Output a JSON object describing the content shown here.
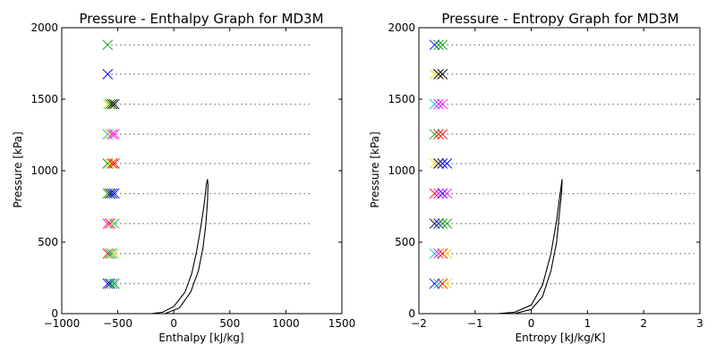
{
  "chart_data": [
    {
      "type": "line",
      "title": "Pressure - Enthalpy Graph for MD3M",
      "xlabel": "Enthalpy [kJ/kg]",
      "ylabel": "Pressure [kPa]",
      "xlim": [
        -1000,
        1500
      ],
      "ylim": [
        0,
        2000
      ],
      "xticks": [
        -1000,
        -500,
        0,
        500,
        1000,
        1500
      ],
      "yticks": [
        0,
        500,
        1000,
        1500,
        2000
      ],
      "xtick_labels": [
        "−1000",
        "−500",
        "0",
        "500",
        "1000",
        "1500"
      ],
      "ytick_labels": [
        "0",
        "500",
        "1000",
        "1500",
        "2000"
      ],
      "grid": false,
      "saturation_dome": {
        "liquid": [
          [
            -200,
            0
          ],
          [
            -100,
            10
          ],
          [
            0,
            50
          ],
          [
            100,
            150
          ],
          [
            160,
            280
          ],
          [
            200,
            420
          ],
          [
            240,
            600
          ],
          [
            270,
            760
          ],
          [
            290,
            900
          ],
          [
            300,
            940
          ]
        ],
        "vapor": [
          [
            -80,
            0
          ],
          [
            50,
            40
          ],
          [
            150,
            150
          ],
          [
            220,
            300
          ],
          [
            260,
            460
          ],
          [
            285,
            620
          ],
          [
            300,
            780
          ],
          [
            305,
            900
          ],
          [
            300,
            940
          ]
        ]
      },
      "isobars": [
        {
          "y": 210,
          "x_end": 1230
        },
        {
          "y": 420,
          "x_end": 1230
        },
        {
          "y": 630,
          "x_end": 1230
        },
        {
          "y": 840,
          "x_end": 1230
        },
        {
          "y": 1050,
          "x_end": 1230
        },
        {
          "y": 1255,
          "x_end": 1230
        },
        {
          "y": 1465,
          "x_end": 1230
        },
        {
          "y": 1675,
          "x_end": 1230
        },
        {
          "y": 1880,
          "x_end": 1230
        }
      ],
      "markers": [
        {
          "y": 210,
          "points": [
            [
              -590,
              "#0000ff"
            ],
            [
              -570,
              "#000000"
            ],
            [
              -550,
              "#00bfbf"
            ],
            [
              -530,
              "#00a000"
            ]
          ]
        },
        {
          "y": 420,
          "points": [
            [
              -590,
              "#ff0000"
            ],
            [
              -570,
              "#00a000"
            ],
            [
              -550,
              "#00bfbf"
            ],
            [
              -530,
              "#ffd700"
            ]
          ]
        },
        {
          "y": 630,
          "points": [
            [
              -590,
              "#ff00ff"
            ],
            [
              -570,
              "#ff0000"
            ],
            [
              -550,
              "#ffd700"
            ],
            [
              -530,
              "#00bfbf"
            ]
          ]
        },
        {
          "y": 840,
          "points": [
            [
              -590,
              "#00a000"
            ],
            [
              -570,
              "#000000"
            ],
            [
              -550,
              "#0000ff"
            ],
            [
              -530,
              "#0000ff"
            ]
          ]
        },
        {
          "y": 1050,
          "points": [
            [
              -590,
              "#00a000"
            ],
            [
              -570,
              "#ffd700"
            ],
            [
              -550,
              "#ff0000"
            ],
            [
              -530,
              "#ff0000"
            ]
          ]
        },
        {
          "y": 1255,
          "points": [
            [
              -590,
              "#00bfbf"
            ],
            [
              -570,
              "#ffd700"
            ],
            [
              -550,
              "#ff00ff"
            ],
            [
              -530,
              "#ff00ff"
            ]
          ]
        },
        {
          "y": 1465,
          "points": [
            [
              -590,
              "#ffd700"
            ],
            [
              -570,
              "#00a000"
            ],
            [
              -550,
              "#000000"
            ],
            [
              -530,
              "#000000"
            ]
          ]
        },
        {
          "y": 1675,
          "points": [
            [
              -590,
              "#0000ff"
            ]
          ]
        },
        {
          "y": 1880,
          "points": [
            [
              -590,
              "#00a000"
            ]
          ]
        }
      ]
    },
    {
      "type": "line",
      "title": "Pressure - Entropy Graph for MD3M",
      "xlabel": "Entropy [kJ/kg/K]",
      "ylabel": "Pressure [kPa]",
      "xlim": [
        -2,
        3
      ],
      "ylim": [
        0,
        2000
      ],
      "xticks": [
        -2,
        -1,
        0,
        1,
        2,
        3
      ],
      "yticks": [
        0,
        500,
        1000,
        1500,
        2000
      ],
      "xtick_labels": [
        "−2",
        "−1",
        "0",
        "1",
        "2",
        "3"
      ],
      "ytick_labels": [
        "0",
        "500",
        "1000",
        "1500",
        "2000"
      ],
      "grid": false,
      "saturation_dome": {
        "liquid": [
          [
            -0.6,
            0
          ],
          [
            -0.3,
            10
          ],
          [
            0,
            60
          ],
          [
            0.2,
            200
          ],
          [
            0.35,
            420
          ],
          [
            0.45,
            650
          ],
          [
            0.5,
            800
          ],
          [
            0.55,
            940
          ]
        ],
        "vapor": [
          [
            -0.3,
            0
          ],
          [
            0,
            30
          ],
          [
            0.2,
            120
          ],
          [
            0.35,
            300
          ],
          [
            0.45,
            500
          ],
          [
            0.5,
            700
          ],
          [
            0.54,
            850
          ],
          [
            0.55,
            940
          ]
        ]
      },
      "isobars": [
        {
          "y": 210,
          "x_end": 2.9
        },
        {
          "y": 420,
          "x_end": 2.9
        },
        {
          "y": 630,
          "x_end": 2.9
        },
        {
          "y": 840,
          "x_end": 2.9
        },
        {
          "y": 1050,
          "x_end": 2.9
        },
        {
          "y": 1255,
          "x_end": 2.9
        },
        {
          "y": 1465,
          "x_end": 2.9
        },
        {
          "y": 1675,
          "x_end": 2.9
        },
        {
          "y": 1880,
          "x_end": 2.9
        }
      ],
      "markers": [
        {
          "y": 210,
          "points": [
            [
              -1.72,
              "#0000ff"
            ],
            [
              -1.65,
              "#00bfbf"
            ],
            [
              -1.58,
              "#ff0000"
            ],
            [
              -1.5,
              "#ffd700"
            ]
          ]
        },
        {
          "y": 420,
          "points": [
            [
              -1.72,
              "#00bfbf"
            ],
            [
              -1.65,
              "#ff00ff"
            ],
            [
              -1.58,
              "#ff0000"
            ],
            [
              -1.5,
              "#ffd700"
            ]
          ]
        },
        {
          "y": 630,
          "points": [
            [
              -1.72,
              "#000000"
            ],
            [
              -1.65,
              "#0000ff"
            ],
            [
              -1.58,
              "#00a000"
            ],
            [
              -1.5,
              "#00a000"
            ]
          ]
        },
        {
          "y": 840,
          "points": [
            [
              -1.72,
              "#ff0000"
            ],
            [
              -1.65,
              "#ff00ff"
            ],
            [
              -1.58,
              "#0000ff"
            ],
            [
              -1.5,
              "#ff00ff"
            ]
          ]
        },
        {
          "y": 1050,
          "points": [
            [
              -1.72,
              "#ffd700"
            ],
            [
              -1.65,
              "#000000"
            ],
            [
              -1.58,
              "#0000ff"
            ],
            [
              -1.5,
              "#0000ff"
            ]
          ]
        },
        {
          "y": 1255,
          "points": [
            [
              -1.72,
              "#00a000"
            ],
            [
              -1.65,
              "#ff0000"
            ],
            [
              -1.58,
              "#ff0000"
            ]
          ]
        },
        {
          "y": 1465,
          "points": [
            [
              -1.72,
              "#00bfbf"
            ],
            [
              -1.65,
              "#ff00ff"
            ],
            [
              -1.58,
              "#ff00ff"
            ]
          ]
        },
        {
          "y": 1675,
          "points": [
            [
              -1.72,
              "#ffd700"
            ],
            [
              -1.65,
              "#000000"
            ],
            [
              -1.58,
              "#000000"
            ]
          ]
        },
        {
          "y": 1880,
          "points": [
            [
              -1.72,
              "#0000ff"
            ],
            [
              -1.65,
              "#00a000"
            ],
            [
              -1.58,
              "#00a000"
            ]
          ]
        }
      ]
    }
  ]
}
